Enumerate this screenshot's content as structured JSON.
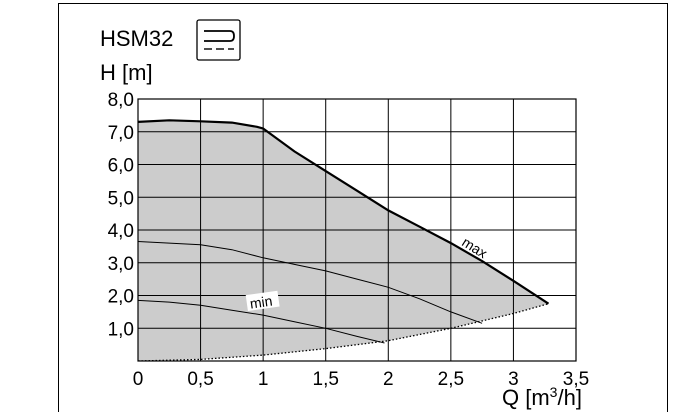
{
  "chart_data": {
    "type": "line",
    "title": "HSM32",
    "ylabel": "H [m]",
    "xlabel_main": "Q [m",
    "xlabel_sup": "3",
    "xlabel_end": "/h]",
    "xlim": [
      0,
      3.5
    ],
    "ylim": [
      0,
      8
    ],
    "grid": true,
    "area_fill": "#cccccc",
    "line_color": "#000000",
    "x_ticks": [
      {
        "value": 0,
        "label": "0"
      },
      {
        "value": 0.5,
        "label": "0,5"
      },
      {
        "value": 1,
        "label": "1"
      },
      {
        "value": 1.5,
        "label": "1,5"
      },
      {
        "value": 2,
        "label": "2"
      },
      {
        "value": 2.5,
        "label": "2,5"
      },
      {
        "value": 3,
        "label": "3"
      },
      {
        "value": 3.5,
        "label": "3,5"
      }
    ],
    "y_ticks": [
      {
        "value": 1,
        "label": "1,0"
      },
      {
        "value": 2,
        "label": "2,0"
      },
      {
        "value": 3,
        "label": "3,0"
      },
      {
        "value": 4,
        "label": "4,0"
      },
      {
        "value": 5,
        "label": "5,0"
      },
      {
        "value": 6,
        "label": "6,0"
      },
      {
        "value": 7,
        "label": "7,0"
      },
      {
        "value": 8,
        "label": "8,0"
      }
    ],
    "series": [
      {
        "name": "max",
        "style": "thick",
        "points": [
          [
            0,
            7.3
          ],
          [
            0.25,
            7.35
          ],
          [
            0.5,
            7.32
          ],
          [
            0.75,
            7.28
          ],
          [
            0.95,
            7.15
          ],
          [
            1.0,
            7.1
          ],
          [
            1.25,
            6.4
          ],
          [
            1.5,
            5.8
          ],
          [
            1.75,
            5.2
          ],
          [
            2.0,
            4.6
          ],
          [
            2.25,
            4.1
          ],
          [
            2.5,
            3.6
          ],
          [
            2.75,
            3.05
          ],
          [
            3.0,
            2.45
          ],
          [
            3.28,
            1.75
          ]
        ]
      },
      {
        "name": "",
        "style": "thin",
        "points": [
          [
            0,
            3.65
          ],
          [
            0.25,
            3.6
          ],
          [
            0.5,
            3.55
          ],
          [
            0.75,
            3.4
          ],
          [
            1.0,
            3.15
          ],
          [
            1.25,
            2.95
          ],
          [
            1.5,
            2.75
          ],
          [
            1.75,
            2.5
          ],
          [
            2.0,
            2.25
          ],
          [
            2.25,
            1.9
          ],
          [
            2.5,
            1.5
          ],
          [
            2.75,
            1.15
          ]
        ]
      },
      {
        "name": "min",
        "style": "thin",
        "points": [
          [
            0,
            1.85
          ],
          [
            0.25,
            1.8
          ],
          [
            0.5,
            1.7
          ],
          [
            0.75,
            1.55
          ],
          [
            1.0,
            1.4
          ],
          [
            1.25,
            1.2
          ],
          [
            1.5,
            1.0
          ],
          [
            1.75,
            0.75
          ],
          [
            1.97,
            0.55
          ]
        ]
      },
      {
        "name": "",
        "style": "dotted",
        "points": [
          [
            0,
            0
          ],
          [
            0.5,
            0.05
          ],
          [
            1.0,
            0.18
          ],
          [
            1.5,
            0.38
          ],
          [
            2.0,
            0.62
          ],
          [
            2.5,
            1.0
          ],
          [
            3.0,
            1.45
          ],
          [
            3.28,
            1.75
          ]
        ]
      }
    ],
    "annotations": [
      {
        "text": "max",
        "x": 2.58,
        "y": 3.55
      },
      {
        "text": "min",
        "x": 0.9,
        "y": 1.6
      }
    ]
  }
}
